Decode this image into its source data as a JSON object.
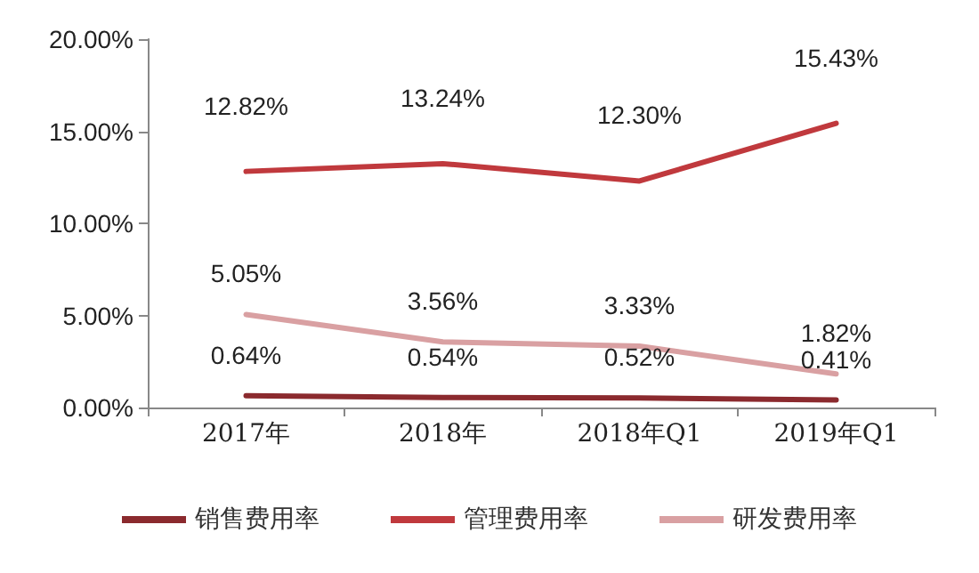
{
  "chart_data": {
    "type": "line",
    "categories": [
      "2017年",
      "2018年",
      "2018年Q1",
      "2019年Q1"
    ],
    "series": [
      {
        "name": "销售费用率",
        "color": "#8b2a2e",
        "values": [
          0.64,
          0.54,
          0.52,
          0.41
        ],
        "value_labels": [
          "0.64%",
          "0.54%",
          "0.52%",
          "0.41%"
        ]
      },
      {
        "name": "管理费用率",
        "color": "#c0393d",
        "values": [
          12.82,
          13.24,
          12.3,
          15.43
        ],
        "value_labels": [
          "12.82%",
          "13.24%",
          "12.30%",
          "15.43%"
        ]
      },
      {
        "name": "研发费用率",
        "color": "#d9a0a2",
        "values": [
          5.05,
          3.56,
          3.33,
          1.82
        ],
        "value_labels": [
          "5.05%",
          "3.56%",
          "3.33%",
          "1.82%"
        ]
      }
    ],
    "ylim": [
      0,
      20
    ],
    "yticks": [
      {
        "value": 0,
        "label": "0.00%"
      },
      {
        "value": 5,
        "label": "5.00%"
      },
      {
        "value": 10,
        "label": "10.00%"
      },
      {
        "value": 15,
        "label": "15.00%"
      },
      {
        "value": 20,
        "label": "20.00%"
      }
    ],
    "grid": false,
    "legend": "bottom",
    "marker": "none",
    "line_style": "solid"
  }
}
